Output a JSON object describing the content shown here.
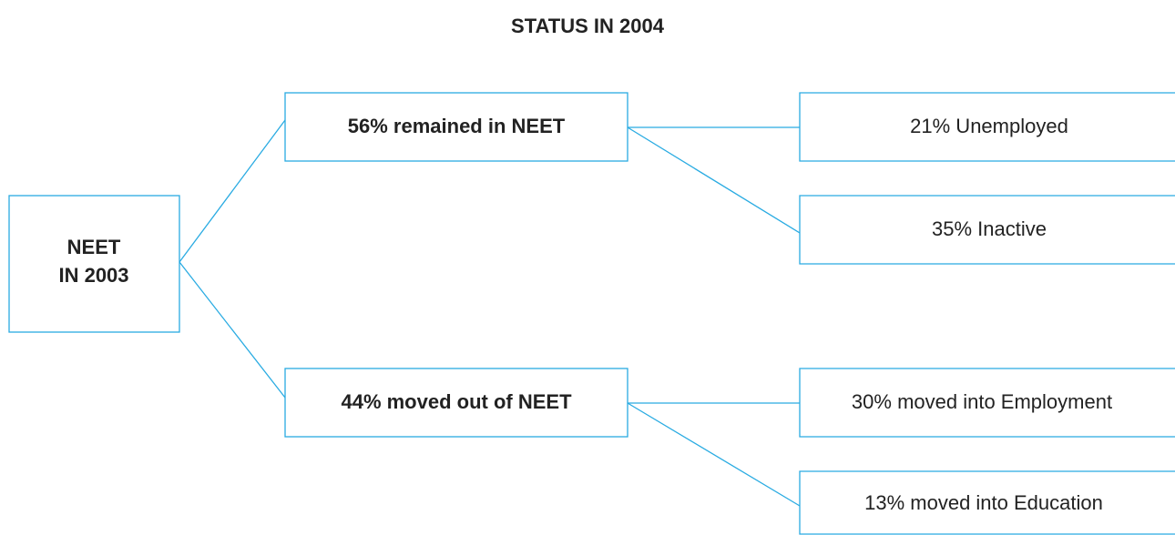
{
  "title": "STATUS IN 2004",
  "nodes": [
    {
      "lines": [
        "NEET",
        "IN 2003"
      ]
    },
    {
      "label": "56% remained in NEET"
    },
    {
      "label": "44% moved out of NEET"
    },
    {
      "label": "21% Unemployed"
    },
    {
      "label": "35% Inactive"
    },
    {
      "label": "30% moved into Employment"
    },
    {
      "label": "13% moved into Education"
    }
  ]
}
